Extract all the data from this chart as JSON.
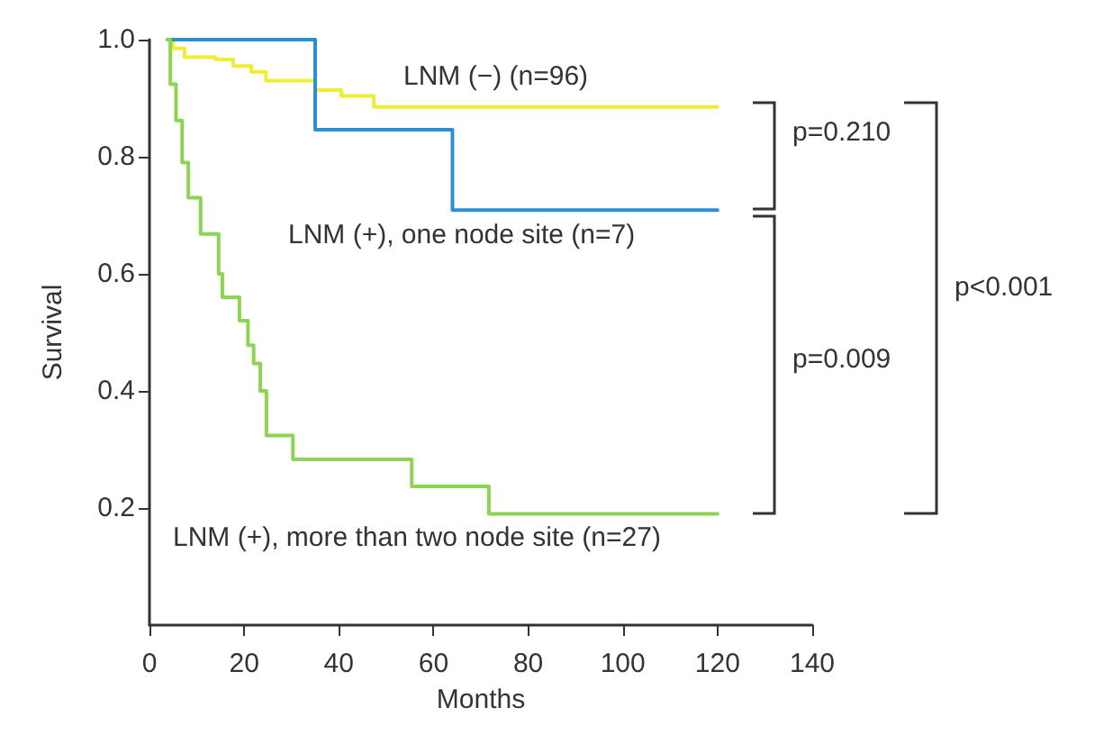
{
  "chart_data": {
    "type": "step",
    "xlabel": "Months",
    "ylabel": "Survival",
    "xlim": [
      0,
      140
    ],
    "xticks": [
      0,
      20,
      40,
      60,
      80,
      100,
      120,
      140
    ],
    "ylim": [
      0,
      1
    ],
    "yticks": [
      {
        "value": 0.2,
        "label": "0.2"
      },
      {
        "value": 0.4,
        "label": "0.4"
      },
      {
        "value": 0.6,
        "label": "0.6"
      },
      {
        "value": 0.8,
        "label": "0.8"
      },
      {
        "value": 1,
        "label": "1.0"
      }
    ],
    "grid": false,
    "legend": false,
    "marker": "none",
    "line_style": "solid",
    "series": [
      {
        "name": "LNM (−) (n=96)",
        "color": "#eeee33",
        "x": [
          4,
          5,
          7.4,
          13.9,
          17.7,
          21.5,
          24.6,
          35,
          40.5,
          47.4,
          120
        ],
        "values": [
          1.0,
          0.985,
          0.97,
          0.966,
          0.955,
          0.945,
          0.93,
          0.914,
          0.904,
          0.885,
          0.885
        ]
      },
      {
        "name": "LNM (+), one node site (n=7)",
        "color": "#2b8fd0",
        "x": [
          4,
          35,
          64,
          120
        ],
        "values": [
          1.0,
          0.846,
          0.709,
          0.709
        ]
      },
      {
        "name": "LNM (+), more than two node site (n=27)",
        "color": "#8ed453",
        "x": [
          3.7,
          4.4,
          5.6,
          6.9,
          8.2,
          10.8,
          14.6,
          15.4,
          19,
          20.8,
          22,
          23.4,
          24.7,
          30.3,
          55.4,
          71.7,
          120
        ],
        "values": [
          1.0,
          0.924,
          0.862,
          0.79,
          0.73,
          0.668,
          0.6,
          0.56,
          0.52,
          0.478,
          0.447,
          0.4,
          0.324,
          0.283,
          0.237,
          0.19,
          0.19
        ]
      }
    ],
    "annotations": [
      "p=0.210",
      "p=0.009",
      "p<0.001"
    ]
  }
}
